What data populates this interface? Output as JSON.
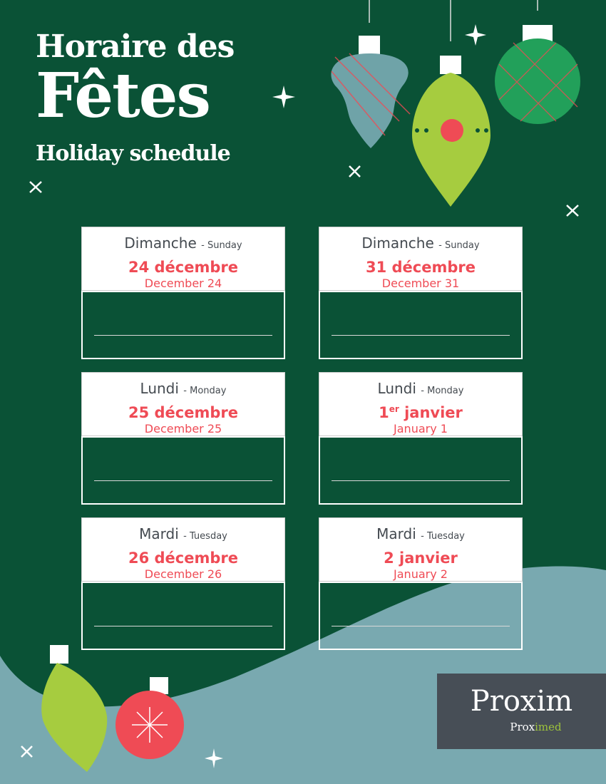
{
  "header": {
    "line1": "Horaire des",
    "line2": "Fêtes",
    "line3": "Holiday schedule"
  },
  "cards": [
    {
      "day_fr": "Dimanche",
      "day_en": "- Sunday",
      "date_fr": "24 décembre",
      "date_fr_sup": "",
      "date_en": "December 24"
    },
    {
      "day_fr": "Dimanche",
      "day_en": "- Sunday",
      "date_fr": "31 décembre",
      "date_fr_sup": "",
      "date_en": "December 31"
    },
    {
      "day_fr": "Lundi",
      "day_en": "- Monday",
      "date_fr": "25 décembre",
      "date_fr_sup": "",
      "date_en": "December 25"
    },
    {
      "day_fr": "Lundi",
      "day_en": "- Monday",
      "date_fr": "1",
      "date_fr_sup": "er",
      "date_fr_rest": " janvier",
      "date_en": "January 1"
    },
    {
      "day_fr": "Mardi",
      "day_en": "- Tuesday",
      "date_fr": "26 décembre",
      "date_fr_sup": "",
      "date_en": "December 26"
    },
    {
      "day_fr": "Mardi",
      "day_en": "- Tuesday",
      "date_fr": "2 janvier",
      "date_fr_sup": "",
      "date_en": "January 2"
    }
  ],
  "logo": {
    "brand": "Proxim",
    "sub_a": "Prox",
    "sub_b": "imed"
  },
  "colors": {
    "background": "#0a5236",
    "accent_red": "#ef4b55",
    "wave": "#79a9b0",
    "lime": "#a6cc3f",
    "logo_bg": "#474e56"
  }
}
